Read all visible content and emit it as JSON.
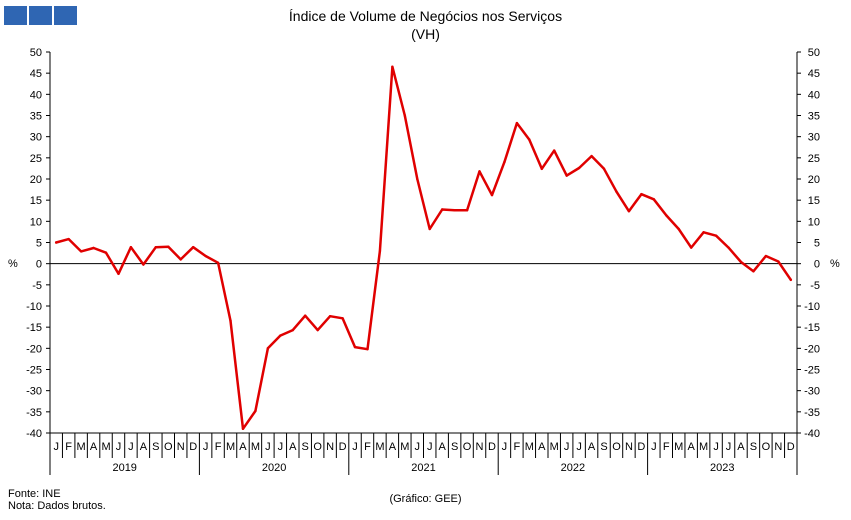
{
  "header": {
    "title": "Índice de Volume de Negócios nos Serviços",
    "subtitle": "(VH)"
  },
  "footer": {
    "source": "Fonte: INE",
    "note": "Nota: Dados brutos.",
    "credit": "(Gráfico: GEE)"
  },
  "colors": {
    "line": "#e00000",
    "logo": "#2f66b3"
  },
  "chart_data": {
    "type": "line",
    "title": "Índice de Volume de Negócios nos Serviços",
    "subtitle": "(VH)",
    "ylabel_left": "%",
    "ylabel_right": "%",
    "ylim": [
      -40,
      50
    ],
    "yticks": [
      50,
      45,
      40,
      35,
      30,
      25,
      20,
      15,
      10,
      5,
      0,
      -5,
      -10,
      -15,
      -20,
      -25,
      -30,
      -35,
      -40
    ],
    "month_labels": [
      "J",
      "F",
      "M",
      "A",
      "M",
      "J",
      "J",
      "A",
      "S",
      "O",
      "N",
      "D"
    ],
    "years": [
      "2019",
      "2020",
      "2021",
      "2022",
      "2023"
    ],
    "grid": false,
    "series": [
      {
        "values": [
          5.0,
          5.8,
          2.9,
          3.7,
          2.6,
          -2.4,
          3.9,
          -0.2,
          3.9,
          4.0,
          1.0,
          3.9,
          1.8,
          0.2,
          -13.5,
          -39.0,
          -34.8,
          -20.0,
          -17.0,
          -15.7,
          -12.3,
          -15.7,
          -12.4,
          -12.9,
          -19.7,
          -20.2,
          3.0,
          46.5,
          35.0,
          20.0,
          8.2,
          12.8,
          12.6,
          12.6,
          21.8,
          16.2,
          24.0,
          33.2,
          29.3,
          22.4,
          26.7,
          20.8,
          22.6,
          25.4,
          22.4,
          17.0,
          12.4,
          16.4,
          15.2,
          11.4,
          8.2,
          3.8,
          7.4,
          6.6,
          3.8,
          0.4,
          -1.8,
          1.8,
          0.5,
          -3.8
        ]
      }
    ]
  }
}
